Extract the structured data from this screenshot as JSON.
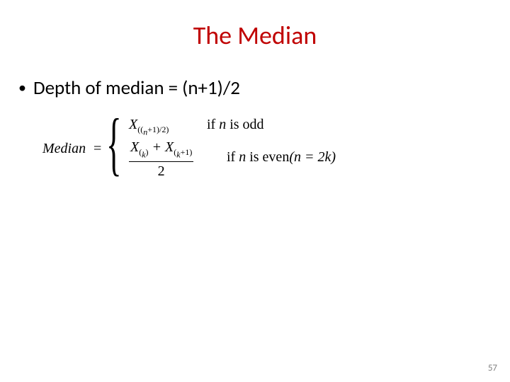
{
  "title": {
    "text": "The Median",
    "color": "#c00000",
    "fontsize": 36
  },
  "bullet": {
    "text": "Depth of median = (n+1)/2",
    "color": "#000000",
    "fontsize": 27
  },
  "formula": {
    "label": "Median",
    "equals": "=",
    "case1": {
      "expr_html": "X<span class='sub'>((<span class='subi'>n</span>+1)/2)</span>",
      "cond_html": "<span class='rm'>if </span> n <span class='rm'> is odd</span>"
    },
    "case2": {
      "num_html": "X<span class='sub'>(<span class='subi'>k</span>)</span> + X<span class='sub'>(<span class='subi'>k</span>+1)</span>",
      "den": "2",
      "cond_html": "<span class='rm'>if </span> n <span class='rm'> is even</span>(n = 2k)"
    },
    "color": "#000000"
  },
  "page_number": "57",
  "background_color": "#ffffff"
}
